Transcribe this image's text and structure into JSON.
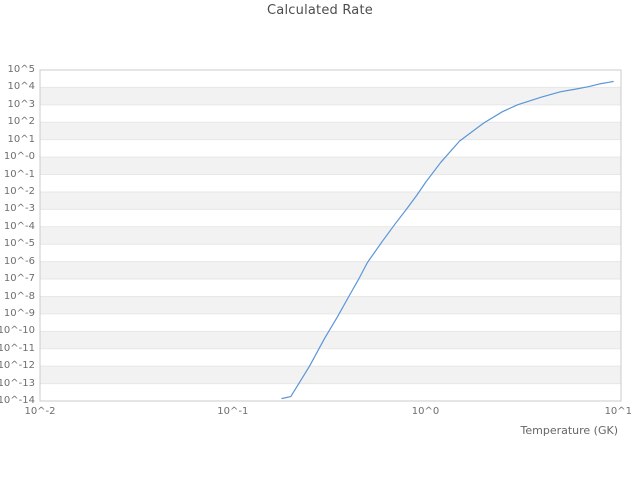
{
  "chart_title": "Calculated Rate",
  "x_axis_title": "Temperature (GK)",
  "colors": {
    "line": "#5a96d7",
    "band": "#f2f2f2",
    "grid": "#e7e7e7",
    "border": "#cbcbcb",
    "tick_text": "#6e6e6e",
    "title_text": "#4d4d4d"
  },
  "chart_data": {
    "type": "line",
    "title": "Calculated Rate",
    "xlabel": "Temperature (GK)",
    "ylabel": "",
    "x_scale": "log",
    "y_scale": "log",
    "xlim": [
      0.01,
      10
    ],
    "ylim": [
      1e-14,
      100000.0
    ],
    "grid": "horizontal-decade-lines-with-alternating-bands",
    "legend": "none",
    "x_tick_labels": [
      "10^-2",
      "10^-1",
      "10^0",
      "10^1"
    ],
    "y_tick_labels": [
      "10^5",
      "10^4",
      "10^3",
      "10^2",
      "10^1",
      "10^-0",
      "10^-1",
      "10^-2",
      "10^-3",
      "10^-4",
      "10^-5",
      "10^-6",
      "10^-7",
      "10^-8",
      "10^-9",
      "10^-10",
      "10^-11",
      "10^-12",
      "10^-13",
      "10^-14"
    ],
    "series": [
      {
        "name": "Calculated Rate",
        "x": [
          0.18,
          0.2,
          0.25,
          0.3,
          0.35,
          0.4,
          0.45,
          0.5,
          0.6,
          0.7,
          0.8,
          0.9,
          1.0,
          1.2,
          1.5,
          2.0,
          2.5,
          3.0,
          4.0,
          5.0,
          6.0,
          7.0,
          8.0,
          9.0,
          9.4
        ],
        "y": [
          1.4e-14,
          1.8e-14,
          1e-12,
          4e-11,
          7e-10,
          1e-08,
          1e-07,
          9e-07,
          1.6e-05,
          0.00016,
          0.0011,
          0.0063,
          0.035,
          0.5,
          8.3,
          90.0,
          400.0,
          1000.0,
          2800.0,
          5600.0,
          8000.0,
          11000.0,
          16000.0,
          20000.0,
          22000.0
        ]
      }
    ]
  }
}
